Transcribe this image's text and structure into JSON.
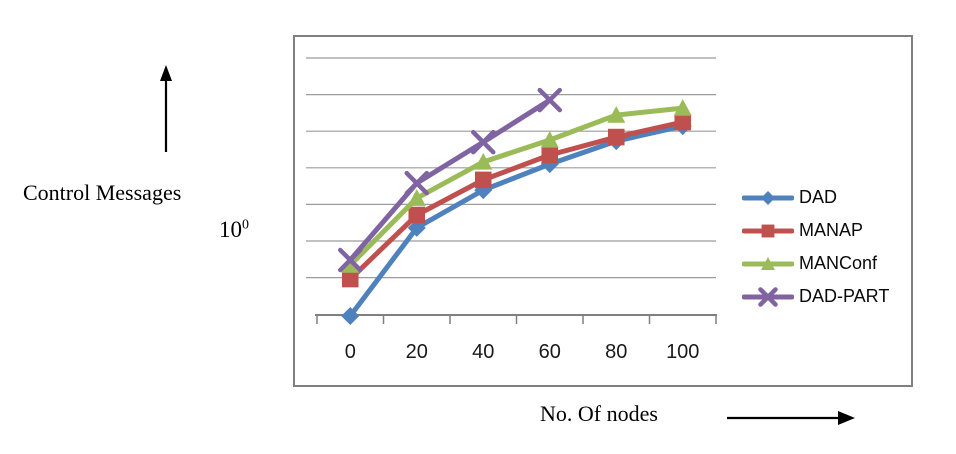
{
  "labels": {
    "y_axis_title": "Control Messages",
    "y_tick": {
      "base": "10",
      "exponent": "0"
    },
    "x_axis_title": "No. Of nodes"
  },
  "chart_data": {
    "type": "line",
    "title": "",
    "xlabel": "No. Of nodes",
    "ylabel": "Control Messages",
    "y_scale": "log10",
    "y_axis_visible_tick_label": "10^0",
    "ylim_log10": [
      -2.1,
      5.6
    ],
    "gridlines_log10": [
      -1,
      0,
      1,
      2,
      3,
      4,
      5
    ],
    "grid": "horizontal",
    "legend_position": "right-inside",
    "categories": [
      0,
      20,
      40,
      60,
      80,
      100
    ],
    "x_tick_labels": [
      "0",
      "20",
      "40",
      "60",
      "80",
      "100"
    ],
    "series": [
      {
        "name": "DAD",
        "color": "#4F81BD",
        "marker": "diamond",
        "x": [
          0,
          20,
          40,
          60,
          80,
          100
        ],
        "y_log10": [
          -2.05,
          0.36,
          1.39,
          2.1,
          2.73,
          3.14
        ]
      },
      {
        "name": "MANAP",
        "color": "#C0504D",
        "marker": "square",
        "x": [
          0,
          20,
          40,
          60,
          80,
          100
        ],
        "y_log10": [
          -1.04,
          0.71,
          1.67,
          2.35,
          2.84,
          3.25
        ]
      },
      {
        "name": "MANConf",
        "color": "#9BBB59",
        "marker": "triangle",
        "x": [
          0,
          20,
          40,
          60,
          80,
          100
        ],
        "y_log10": [
          -0.66,
          1.17,
          2.16,
          2.76,
          3.44,
          3.63
        ]
      },
      {
        "name": "DAD-PART",
        "color": "#8064A2",
        "marker": "x",
        "x": [
          0,
          20,
          40,
          60
        ],
        "y_log10": [
          -0.52,
          1.58,
          2.7,
          3.85
        ]
      }
    ],
    "axis_colors": {
      "gridline": "#9C9C9C",
      "axis_line": "#808080",
      "tick_label": "#1a1a1a"
    }
  }
}
